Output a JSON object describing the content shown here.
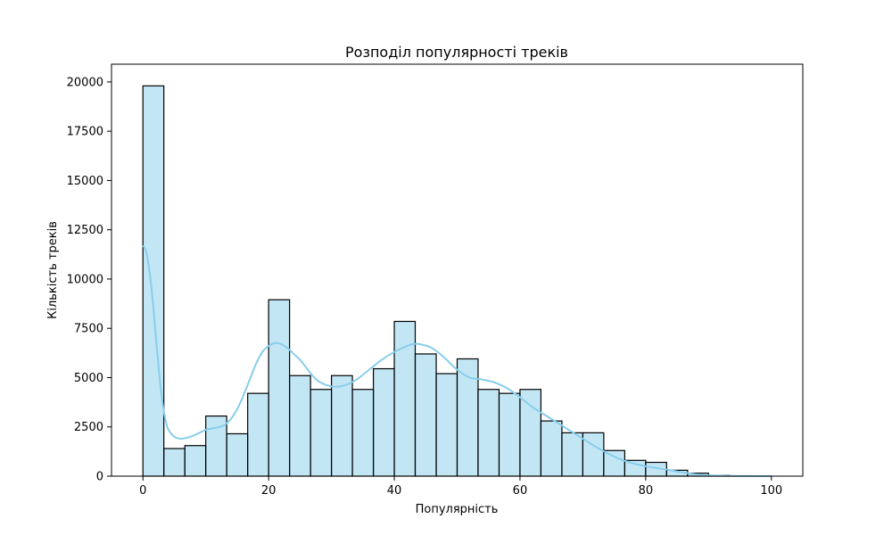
{
  "chart_data": {
    "type": "bar",
    "subtype": "histogram-with-kde",
    "title": "Розподіл популярності треків",
    "xlabel": "Популярність",
    "ylabel": "Кількість треків",
    "xlim": [
      -5,
      105
    ],
    "ylim": [
      0,
      20900
    ],
    "xticks": [
      0,
      20,
      40,
      60,
      80,
      100
    ],
    "yticks": [
      0,
      2500,
      5000,
      7500,
      10000,
      12500,
      15000,
      17500,
      20000
    ],
    "grid": false,
    "bin_edges": [
      0,
      3.33,
      6.67,
      10,
      13.33,
      16.67,
      20,
      23.33,
      26.67,
      30,
      33.33,
      36.67,
      40,
      43.33,
      46.67,
      50,
      53.33,
      56.67,
      60,
      63.33,
      66.67,
      70,
      73.33,
      76.67,
      80,
      83.33,
      86.67,
      90,
      93.33,
      96.67,
      100
    ],
    "values": [
      19800,
      1400,
      1550,
      3050,
      2150,
      4200,
      8950,
      5100,
      4400,
      5100,
      4400,
      5450,
      7850,
      6200,
      5200,
      5950,
      4400,
      4200,
      4400,
      2800,
      2200,
      2200,
      1300,
      800,
      700,
      300,
      150,
      40,
      10,
      5
    ],
    "bar_color": "#87ceeb",
    "bar_alpha": 0.5,
    "edge_color": "#000000",
    "kde": {
      "color": "#87ceeb",
      "x": [
        0,
        0.5,
        1,
        1.5,
        2,
        2.5,
        3,
        3.5,
        4,
        5,
        6,
        7,
        8,
        9,
        10,
        11,
        12,
        13,
        14,
        15,
        16,
        17,
        18,
        19,
        20,
        21,
        22,
        23,
        24,
        25,
        26,
        27,
        28,
        30,
        32,
        34,
        36,
        38,
        40,
        42,
        43,
        44,
        46,
        48,
        50,
        52,
        54,
        56,
        58,
        60,
        62,
        64,
        66,
        68,
        70,
        72,
        74,
        76,
        78,
        80,
        82,
        84,
        86,
        88,
        90,
        92,
        94,
        96,
        98,
        100
      ],
      "y": [
        11700,
        11400,
        10500,
        9100,
        7300,
        5500,
        4000,
        3000,
        2400,
        2000,
        1900,
        1950,
        2050,
        2200,
        2350,
        2420,
        2480,
        2600,
        2900,
        3400,
        4100,
        4900,
        5700,
        6300,
        6600,
        6750,
        6700,
        6500,
        6200,
        5900,
        5500,
        5100,
        4800,
        4550,
        4600,
        4900,
        5400,
        5900,
        6300,
        6600,
        6700,
        6700,
        6500,
        6000,
        5400,
        5000,
        4900,
        4750,
        4450,
        4000,
        3500,
        3100,
        2700,
        2300,
        1900,
        1500,
        1150,
        850,
        650,
        500,
        400,
        300,
        180,
        90,
        40,
        20,
        10,
        5,
        2,
        0
      ]
    }
  }
}
